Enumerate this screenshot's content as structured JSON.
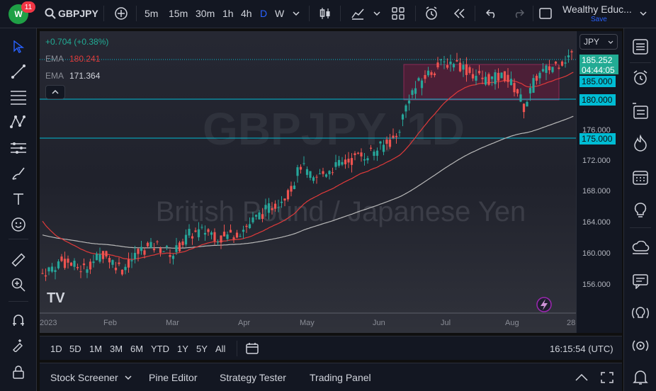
{
  "toolbar": {
    "notification_count": "11",
    "symbol": "GBPJPY",
    "intervals": [
      "5m",
      "15m",
      "30m",
      "1h",
      "4h",
      "D",
      "W"
    ],
    "active_interval": "D",
    "account_name": "Wealthy Educ...",
    "save_label": "Save"
  },
  "legend": {
    "change": "+0.704 (+0.38%)",
    "ema_fast_label": "EMA",
    "ema_fast_value": "180.241",
    "ema_slow_label": "EMA",
    "ema_slow_value": "171.364",
    "currency": "JPY"
  },
  "watermark": {
    "symbol": "GBPJPY, 1D",
    "description": "British Pound / Japanese Yen"
  },
  "price_axis": {
    "labels": [
      "176.000",
      "172.000",
      "168.000",
      "164.000",
      "160.000",
      "156.000"
    ],
    "current_price": "185.252",
    "countdown": "04:44:05",
    "level_185": "185.000",
    "level_180": "180.000",
    "level_175": "175.000"
  },
  "time_axis": {
    "labels": [
      "2023",
      "Feb",
      "Mar",
      "Apr",
      "May",
      "Jun",
      "Jul",
      "Aug",
      "28"
    ]
  },
  "bottom_bar": {
    "ranges": [
      "1D",
      "5D",
      "1M",
      "3M",
      "6M",
      "YTD",
      "1Y",
      "5Y",
      "All"
    ],
    "time": "16:15:54 (UTC)"
  },
  "panels": {
    "stock_screener": "Stock Screener",
    "pine_editor": "Pine Editor",
    "strategy_tester": "Strategy Tester",
    "trading_panel": "Trading Panel"
  },
  "colors": {
    "up": "#26a69a",
    "down": "#ef5350",
    "ema_fast": "#e03a3a",
    "ema_slow": "#b8b8b8",
    "level_line": "#00bcd4",
    "box_fill": "#5a1e3a",
    "price_green": "#22ab94",
    "accent": "#2962ff"
  }
}
